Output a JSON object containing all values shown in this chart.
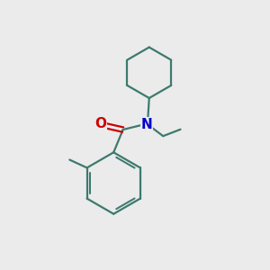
{
  "bg_color": "#ebebeb",
  "bond_color": "#3d7a6e",
  "N_color": "#0000cc",
  "O_color": "#cc0000",
  "font_size": 11,
  "bond_width": 1.6
}
